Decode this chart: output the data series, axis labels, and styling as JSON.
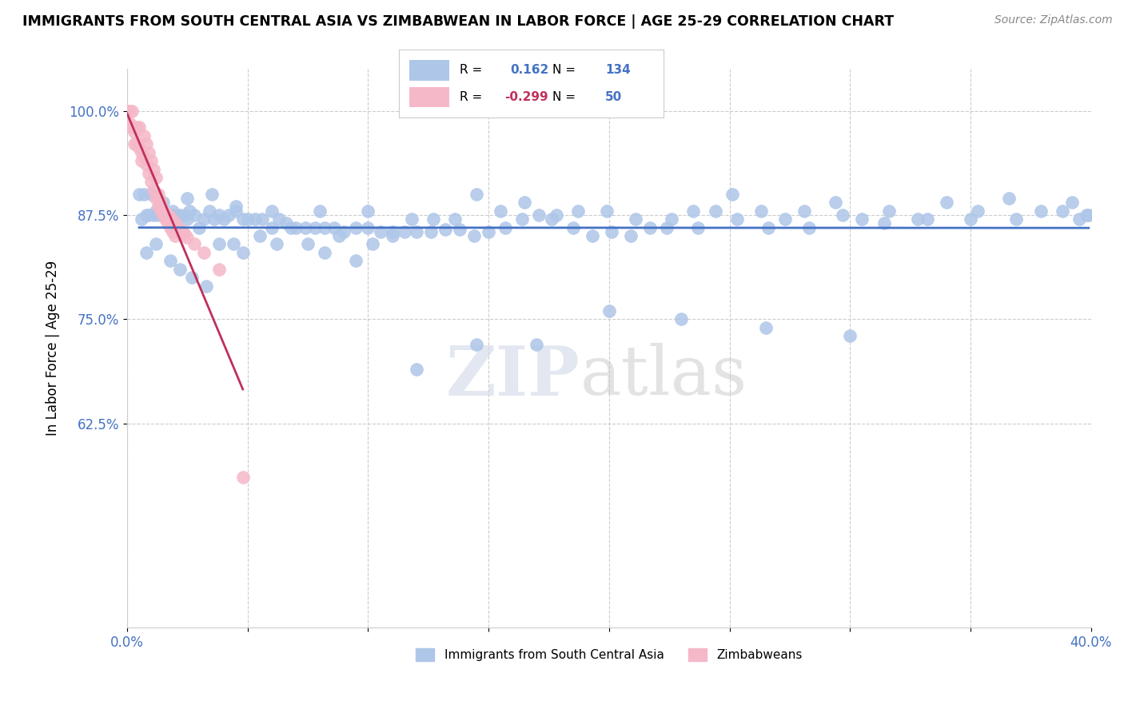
{
  "title": "IMMIGRANTS FROM SOUTH CENTRAL ASIA VS ZIMBABWEAN IN LABOR FORCE | AGE 25-29 CORRELATION CHART",
  "source": "Source: ZipAtlas.com",
  "ylabel": "In Labor Force | Age 25-29",
  "xlim": [
    0.0,
    0.4
  ],
  "ylim": [
    0.38,
    1.05
  ],
  "yticks": [
    0.625,
    0.75,
    0.875,
    1.0
  ],
  "ytick_labels": [
    "62.5%",
    "75.0%",
    "87.5%",
    "100.0%"
  ],
  "xticks": [
    0.0,
    0.05,
    0.1,
    0.15,
    0.2,
    0.25,
    0.3,
    0.35,
    0.4
  ],
  "xtick_labels": [
    "0.0%",
    "",
    "",
    "",
    "",
    "",
    "",
    "",
    "40.0%"
  ],
  "blue_R": 0.162,
  "blue_N": 134,
  "pink_R": -0.299,
  "pink_N": 50,
  "blue_face_color": "#aec6e8",
  "pink_face_color": "#f5b8c8",
  "blue_line_color": "#4472c4",
  "pink_line_color": "#c0305a",
  "legend_label_blue": "Immigrants from South Central Asia",
  "legend_label_pink": "Zimbabweans",
  "watermark_zip": "ZIP",
  "watermark_atlas": "atlas",
  "background_color": "#ffffff",
  "blue_x": [
    0.005,
    0.007,
    0.008,
    0.009,
    0.01,
    0.011,
    0.012,
    0.013,
    0.014,
    0.015,
    0.016,
    0.017,
    0.018,
    0.019,
    0.02,
    0.022,
    0.024,
    0.025,
    0.026,
    0.028,
    0.03,
    0.032,
    0.034,
    0.036,
    0.038,
    0.04,
    0.042,
    0.045,
    0.048,
    0.05,
    0.053,
    0.056,
    0.06,
    0.063,
    0.066,
    0.07,
    0.074,
    0.078,
    0.082,
    0.086,
    0.09,
    0.095,
    0.1,
    0.105,
    0.11,
    0.115,
    0.12,
    0.126,
    0.132,
    0.138,
    0.144,
    0.15,
    0.157,
    0.164,
    0.171,
    0.178,
    0.185,
    0.193,
    0.201,
    0.209,
    0.217,
    0.226,
    0.235,
    0.244,
    0.253,
    0.263,
    0.273,
    0.283,
    0.294,
    0.305,
    0.316,
    0.328,
    0.34,
    0.353,
    0.366,
    0.379,
    0.392,
    0.008,
    0.012,
    0.018,
    0.022,
    0.027,
    0.033,
    0.038,
    0.044,
    0.048,
    0.055,
    0.062,
    0.068,
    0.075,
    0.082,
    0.088,
    0.095,
    0.102,
    0.11,
    0.118,
    0.127,
    0.136,
    0.145,
    0.155,
    0.165,
    0.176,
    0.187,
    0.199,
    0.211,
    0.224,
    0.237,
    0.251,
    0.266,
    0.281,
    0.297,
    0.314,
    0.332,
    0.35,
    0.369,
    0.388,
    0.395,
    0.398,
    0.399,
    0.006,
    0.015,
    0.025,
    0.035,
    0.045,
    0.06,
    0.08,
    0.1,
    0.12,
    0.145,
    0.17,
    0.2,
    0.23,
    0.265,
    0.3
  ],
  "blue_y": [
    0.9,
    0.9,
    0.875,
    0.875,
    0.9,
    0.875,
    0.88,
    0.875,
    0.89,
    0.875,
    0.875,
    0.875,
    0.875,
    0.88,
    0.875,
    0.875,
    0.875,
    0.87,
    0.88,
    0.875,
    0.86,
    0.87,
    0.88,
    0.87,
    0.875,
    0.87,
    0.875,
    0.88,
    0.87,
    0.87,
    0.87,
    0.87,
    0.86,
    0.87,
    0.865,
    0.86,
    0.86,
    0.86,
    0.86,
    0.86,
    0.855,
    0.86,
    0.86,
    0.855,
    0.855,
    0.855,
    0.855,
    0.855,
    0.858,
    0.858,
    0.85,
    0.855,
    0.86,
    0.87,
    0.875,
    0.875,
    0.86,
    0.85,
    0.855,
    0.85,
    0.86,
    0.87,
    0.88,
    0.88,
    0.87,
    0.88,
    0.87,
    0.86,
    0.89,
    0.87,
    0.88,
    0.87,
    0.89,
    0.88,
    0.895,
    0.88,
    0.89,
    0.83,
    0.84,
    0.82,
    0.81,
    0.8,
    0.79,
    0.84,
    0.84,
    0.83,
    0.85,
    0.84,
    0.86,
    0.84,
    0.83,
    0.85,
    0.82,
    0.84,
    0.85,
    0.87,
    0.87,
    0.87,
    0.9,
    0.88,
    0.89,
    0.87,
    0.88,
    0.88,
    0.87,
    0.86,
    0.86,
    0.9,
    0.86,
    0.88,
    0.875,
    0.865,
    0.87,
    0.87,
    0.87,
    0.88,
    0.87,
    0.875,
    0.875,
    0.87,
    0.89,
    0.895,
    0.9,
    0.885,
    0.88,
    0.88,
    0.88,
    0.69,
    0.72,
    0.72,
    0.76,
    0.75,
    0.74,
    0.73
  ],
  "pink_x": [
    0.0,
    0.001,
    0.001,
    0.002,
    0.002,
    0.003,
    0.003,
    0.004,
    0.004,
    0.005,
    0.005,
    0.006,
    0.006,
    0.007,
    0.007,
    0.008,
    0.008,
    0.009,
    0.009,
    0.01,
    0.01,
    0.011,
    0.011,
    0.012,
    0.012,
    0.013,
    0.013,
    0.014,
    0.014,
    0.015,
    0.015,
    0.016,
    0.016,
    0.017,
    0.017,
    0.018,
    0.018,
    0.019,
    0.019,
    0.02,
    0.02,
    0.021,
    0.022,
    0.023,
    0.024,
    0.025,
    0.028,
    0.032,
    0.038,
    0.048
  ],
  "pink_y": [
    1.0,
    1.0,
    0.985,
    1.0,
    0.98,
    0.975,
    0.96,
    0.98,
    0.96,
    0.98,
    0.955,
    0.94,
    0.95,
    0.97,
    0.945,
    0.96,
    0.935,
    0.95,
    0.925,
    0.94,
    0.915,
    0.93,
    0.905,
    0.92,
    0.895,
    0.9,
    0.885,
    0.89,
    0.88,
    0.88,
    0.875,
    0.878,
    0.87,
    0.875,
    0.865,
    0.872,
    0.86,
    0.868,
    0.855,
    0.865,
    0.85,
    0.86,
    0.858,
    0.855,
    0.852,
    0.848,
    0.84,
    0.83,
    0.81,
    0.56
  ]
}
